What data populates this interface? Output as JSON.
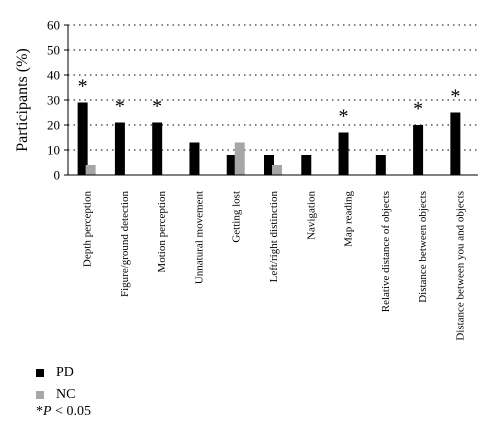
{
  "chart_data": {
    "type": "bar",
    "ylabel": "Participants (%)",
    "ylim": [
      0,
      60
    ],
    "yticks": [
      0,
      10,
      20,
      30,
      40,
      50,
      60
    ],
    "grid": "horizontal-dotted",
    "categories": [
      "Depth perception",
      "Figure/ground detection",
      "Motion perception",
      "Unnatural movement",
      "Getting lost",
      "Left/right distinction",
      "Navigation",
      "Map reading",
      "Relative distance of objects",
      "Distance between objects",
      "Distance between you and objects"
    ],
    "series": [
      {
        "name": "PD",
        "color": "#000000",
        "values": [
          29,
          21,
          21,
          13,
          8,
          8,
          8,
          17,
          8,
          20,
          25
        ]
      },
      {
        "name": "NC",
        "color": "#a6a6a6",
        "values": [
          4,
          0,
          0,
          0,
          13,
          4,
          0,
          0,
          0,
          0,
          0
        ]
      }
    ],
    "significant": [
      true,
      true,
      true,
      false,
      false,
      false,
      false,
      true,
      false,
      true,
      true
    ],
    "significance_marker": "*",
    "legend_position": "bottom-left"
  },
  "legend": {
    "items": [
      {
        "label": "PD",
        "color": "#000000"
      },
      {
        "label": "NC",
        "color": "#a6a6a6"
      }
    ],
    "note_star": "*",
    "note_p": "P",
    "note_rest": " < 0.05"
  }
}
